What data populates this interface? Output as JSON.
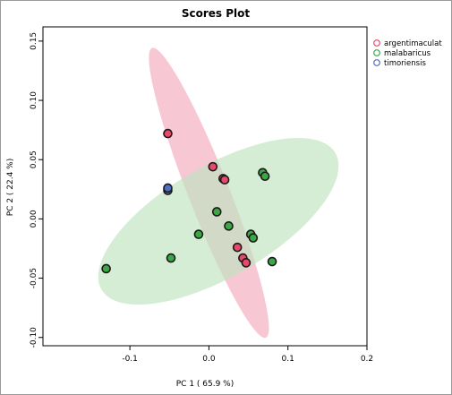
{
  "chart_data": {
    "type": "scatter",
    "title": "Scores Plot",
    "xlabel": "PC 1 ( 65.9 %)",
    "ylabel": "PC 2 ( 22.4 %)",
    "xlim": [
      -0.21,
      0.2
    ],
    "ylim": [
      -0.107,
      0.162
    ],
    "xticks": [
      -0.1,
      0.0,
      0.1,
      0.2
    ],
    "xtick_labels": [
      "-0.1",
      "0.0",
      "0.1",
      "0.2"
    ],
    "yticks": [
      -0.1,
      -0.05,
      0.0,
      0.05,
      0.1,
      0.15
    ],
    "ytick_labels": [
      "-0.10",
      "-0.05",
      "0.00",
      "0.05",
      "0.10",
      "0.15"
    ],
    "legend_position": "top-right",
    "grid": false,
    "series": [
      {
        "name": "argentimaculat",
        "color": "#e8496a",
        "ellipse_color": "#f2a9bd",
        "points": [
          {
            "x": -0.052,
            "y": 0.072
          },
          {
            "x": 0.005,
            "y": 0.044
          },
          {
            "x": 0.018,
            "y": 0.034
          },
          {
            "x": 0.02,
            "y": 0.033
          },
          {
            "x": 0.036,
            "y": -0.024
          },
          {
            "x": 0.043,
            "y": -0.033
          },
          {
            "x": 0.047,
            "y": -0.037
          }
        ],
        "ellipse": {
          "center": [
            0.0,
            0.022
          ],
          "angle_deg": -59,
          "rx": 0.142,
          "ry": 0.024
        }
      },
      {
        "name": "malabaricus",
        "color": "#3aa845",
        "ellipse_color": "#bfe3bf",
        "points": [
          {
            "x": -0.13,
            "y": -0.042
          },
          {
            "x": -0.048,
            "y": -0.033
          },
          {
            "x": -0.013,
            "y": -0.013
          },
          {
            "x": 0.01,
            "y": 0.006
          },
          {
            "x": 0.025,
            "y": -0.006
          },
          {
            "x": 0.053,
            "y": -0.013
          },
          {
            "x": 0.056,
            "y": -0.016
          },
          {
            "x": 0.068,
            "y": 0.039
          },
          {
            "x": 0.071,
            "y": 0.036
          },
          {
            "x": 0.08,
            "y": -0.036
          }
        ],
        "ellipse": {
          "center": [
            0.012,
            -0.002
          ],
          "angle_deg": 19,
          "rx": 0.16,
          "ry": 0.05
        }
      },
      {
        "name": "timoriensis",
        "color": "#4f6fc0",
        "ellipse_color": "#c3ccee",
        "points": [
          {
            "x": -0.052,
            "y": 0.024
          },
          {
            "x": -0.052,
            "y": 0.026
          }
        ],
        "ellipse": null
      }
    ]
  }
}
